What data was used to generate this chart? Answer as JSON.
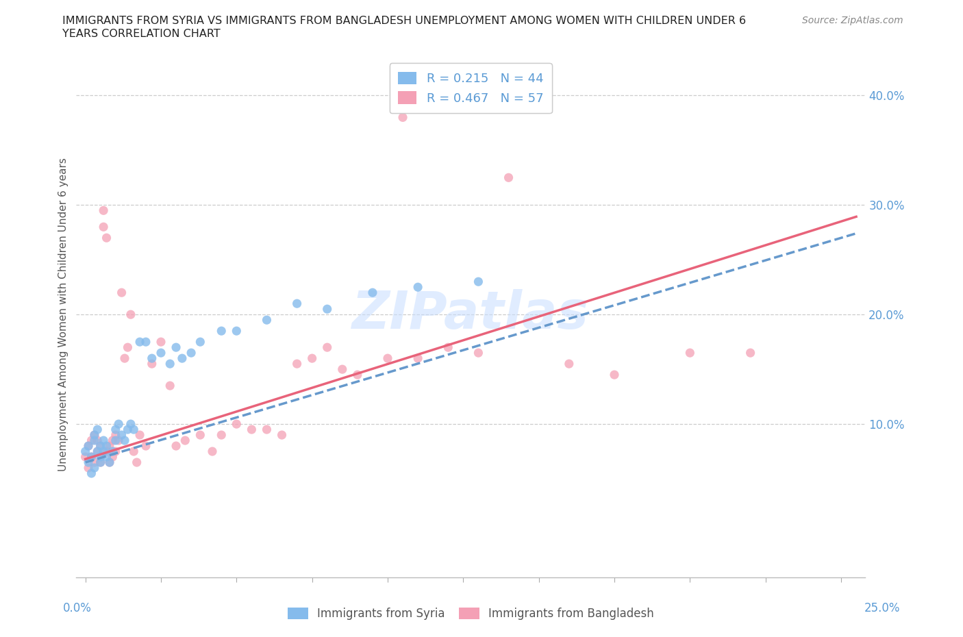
{
  "title_line1": "IMMIGRANTS FROM SYRIA VS IMMIGRANTS FROM BANGLADESH UNEMPLOYMENT AMONG WOMEN WITH CHILDREN UNDER 6",
  "title_line2": "YEARS CORRELATION CHART",
  "source": "Source: ZipAtlas.com",
  "ylabel": "Unemployment Among Women with Children Under 6 years",
  "ylim": [
    -0.04,
    0.44
  ],
  "xlim": [
    -0.003,
    0.258
  ],
  "watermark": "ZIPatlas",
  "R_syria": "0.215",
  "N_syria": "44",
  "R_bangladesh": "0.467",
  "N_bangladesh": "57",
  "color_syria": "#85BBEC",
  "color_bangladesh": "#F4A0B5",
  "color_syria_line": "#6699CC",
  "color_bangladesh_line": "#E8637A",
  "ytick_vals": [
    0.1,
    0.2,
    0.3,
    0.4
  ],
  "ytick_labels": [
    "10.0%",
    "20.0%",
    "30.0%",
    "40.0%"
  ],
  "syria_x": [
    0.0,
    0.001,
    0.001,
    0.002,
    0.002,
    0.003,
    0.003,
    0.003,
    0.004,
    0.004,
    0.005,
    0.005,
    0.005,
    0.006,
    0.006,
    0.007,
    0.007,
    0.008,
    0.009,
    0.01,
    0.01,
    0.011,
    0.012,
    0.013,
    0.014,
    0.015,
    0.016,
    0.018,
    0.02,
    0.022,
    0.025,
    0.028,
    0.03,
    0.032,
    0.035,
    0.038,
    0.045,
    0.05,
    0.06,
    0.07,
    0.08,
    0.095,
    0.11,
    0.13
  ],
  "syria_y": [
    0.075,
    0.08,
    0.065,
    0.07,
    0.055,
    0.06,
    0.085,
    0.09,
    0.075,
    0.095,
    0.07,
    0.08,
    0.065,
    0.075,
    0.085,
    0.07,
    0.08,
    0.065,
    0.075,
    0.085,
    0.095,
    0.1,
    0.09,
    0.085,
    0.095,
    0.1,
    0.095,
    0.175,
    0.175,
    0.16,
    0.165,
    0.155,
    0.17,
    0.16,
    0.165,
    0.175,
    0.185,
    0.185,
    0.195,
    0.21,
    0.205,
    0.22,
    0.225,
    0.23
  ],
  "bangladesh_x": [
    0.0,
    0.001,
    0.001,
    0.002,
    0.002,
    0.003,
    0.003,
    0.004,
    0.004,
    0.005,
    0.005,
    0.006,
    0.006,
    0.007,
    0.007,
    0.008,
    0.008,
    0.009,
    0.009,
    0.01,
    0.01,
    0.011,
    0.012,
    0.013,
    0.014,
    0.015,
    0.016,
    0.017,
    0.018,
    0.02,
    0.022,
    0.025,
    0.028,
    0.03,
    0.033,
    0.038,
    0.042,
    0.045,
    0.05,
    0.055,
    0.06,
    0.065,
    0.07,
    0.075,
    0.08,
    0.085,
    0.09,
    0.1,
    0.105,
    0.11,
    0.12,
    0.13,
    0.14,
    0.16,
    0.175,
    0.2,
    0.22
  ],
  "bangladesh_y": [
    0.07,
    0.08,
    0.06,
    0.085,
    0.07,
    0.065,
    0.09,
    0.075,
    0.085,
    0.08,
    0.065,
    0.295,
    0.28,
    0.27,
    0.075,
    0.08,
    0.065,
    0.07,
    0.085,
    0.075,
    0.09,
    0.085,
    0.22,
    0.16,
    0.17,
    0.2,
    0.075,
    0.065,
    0.09,
    0.08,
    0.155,
    0.175,
    0.135,
    0.08,
    0.085,
    0.09,
    0.075,
    0.09,
    0.1,
    0.095,
    0.095,
    0.09,
    0.155,
    0.16,
    0.17,
    0.15,
    0.145,
    0.16,
    0.38,
    0.16,
    0.17,
    0.165,
    0.325,
    0.155,
    0.145,
    0.165,
    0.165
  ]
}
